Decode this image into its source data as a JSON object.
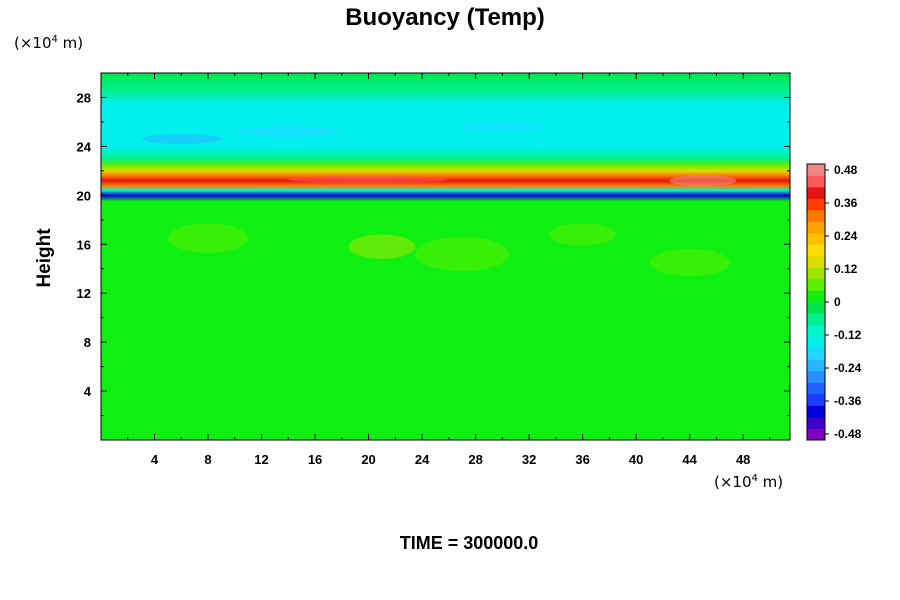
{
  "chart_data": {
    "type": "heatmap",
    "title": "Buoyancy (Temp)",
    "ylabel": "Height",
    "xlabel": "",
    "x_unit": {
      "prefix": "(×10",
      "exp": "4",
      "suffix": " m)"
    },
    "y_unit": {
      "prefix": "(×10",
      "exp": "4",
      "suffix": " m)"
    },
    "x_ticks": [
      "4",
      "8",
      "12",
      "16",
      "20",
      "24",
      "28",
      "32",
      "36",
      "40",
      "44",
      "48"
    ],
    "y_ticks": [
      "4",
      "8",
      "12",
      "16",
      "20",
      "24",
      "28"
    ],
    "xlim": [
      0,
      51.5
    ],
    "ylim": [
      0,
      30
    ],
    "colorbar": {
      "labels": [
        "0.48",
        "0.36",
        "0.24",
        "0.12",
        "0",
        "-0.12",
        "-0.24",
        "-0.36",
        "-0.48"
      ],
      "range": [
        -0.48,
        0.48
      ]
    },
    "field": {
      "description_units": "buoyancy (temp) vs height, x1e4 m",
      "vertical_profile": [
        {
          "height": 0,
          "value": 0.02
        },
        {
          "height": 18.5,
          "value": 0.02
        },
        {
          "height": 19.5,
          "value": 0.0
        },
        {
          "height": 20.0,
          "value": -0.38
        },
        {
          "height": 20.4,
          "value": -0.1
        },
        {
          "height": 20.8,
          "value": 0.3
        },
        {
          "height": 21.2,
          "value": 0.38
        },
        {
          "height": 21.6,
          "value": 0.28
        },
        {
          "height": 22.0,
          "value": 0.12
        },
        {
          "height": 22.5,
          "value": 0.04
        },
        {
          "height": 23.0,
          "value": -0.06
        },
        {
          "height": 24.0,
          "value": -0.14
        },
        {
          "height": 27.5,
          "value": -0.14
        },
        {
          "height": 28.5,
          "value": -0.08
        },
        {
          "height": 30.0,
          "value": -0.02
        }
      ]
    }
  },
  "time_label": "TIME = 300000.0"
}
